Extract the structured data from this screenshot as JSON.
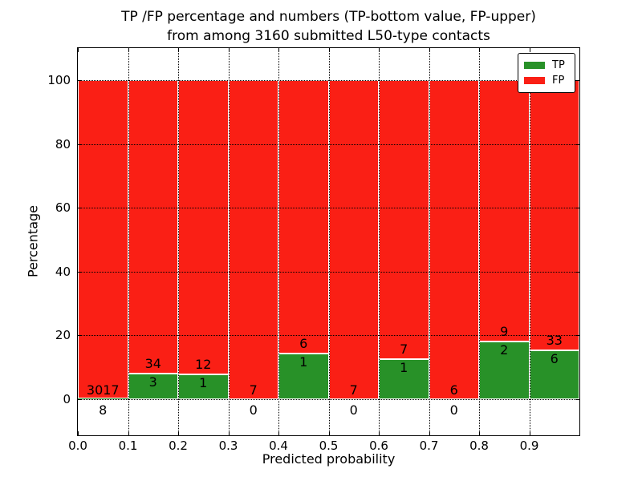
{
  "title_line1": "TP /FP percentage and numbers (TP-bottom value, FP-upper)",
  "title_line2": "from among 3160 submitted L50-type contacts",
  "chart_data": {
    "type": "bar",
    "variant": "stacked-percentage",
    "title": "TP /FP percentage and numbers (TP-bottom value, FP-upper) from among 3160 submitted L50-type contacts",
    "total_submitted_contacts": 3160,
    "xlabel": "Predicted probability",
    "ylabel": "Percentage",
    "xlim": [
      0.0,
      1.0
    ],
    "ylim_visible_extra": "white margin above 100 and below 0",
    "x_ticks": [
      "0.0",
      "0.1",
      "0.2",
      "0.3",
      "0.4",
      "0.5",
      "0.6",
      "0.7",
      "0.8",
      "0.9"
    ],
    "y_ticks": [
      "0",
      "20",
      "40",
      "60",
      "80",
      "100"
    ],
    "y_tick_values": [
      0,
      20,
      40,
      60,
      80,
      100
    ],
    "grid": "dotted, drawn above bars",
    "legend": {
      "position": "upper-right",
      "entries": [
        {
          "label": "TP",
          "color": "#289128"
        },
        {
          "label": "FP",
          "color": "#fa1f15"
        }
      ]
    },
    "bins": [
      {
        "x0": 0.0,
        "x1": 0.1,
        "tp": 8,
        "fp": 3017
      },
      {
        "x0": 0.1,
        "x1": 0.2,
        "tp": 3,
        "fp": 34
      },
      {
        "x0": 0.2,
        "x1": 0.3,
        "tp": 1,
        "fp": 12
      },
      {
        "x0": 0.3,
        "x1": 0.4,
        "tp": 0,
        "fp": 7
      },
      {
        "x0": 0.4,
        "x1": 0.5,
        "tp": 1,
        "fp": 6
      },
      {
        "x0": 0.5,
        "x1": 0.6,
        "tp": 0,
        "fp": 7
      },
      {
        "x0": 0.6,
        "x1": 0.7,
        "tp": 1,
        "fp": 7
      },
      {
        "x0": 0.7,
        "x1": 0.8,
        "tp": 0,
        "fp": 6
      },
      {
        "x0": 0.8,
        "x1": 0.9,
        "tp": 2,
        "fp": 9
      },
      {
        "x0": 0.9,
        "x1": 1.0,
        "tp": 6,
        "fp": 33
      }
    ],
    "colors": {
      "tp_bar": "#289128",
      "fp_bar": "#fa1f15",
      "bar_edge": "#ffffff",
      "text": "#000000",
      "frame": "#000000",
      "background": "#ffffff"
    }
  }
}
